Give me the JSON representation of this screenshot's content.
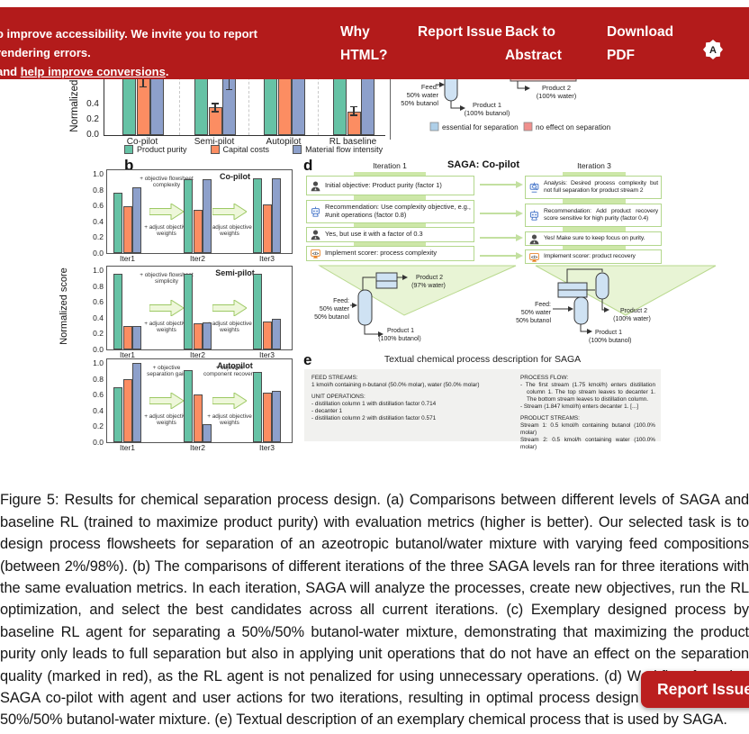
{
  "banner": {
    "color": "#b31b1b",
    "notice_line1": "o improve accessibility. We invite you to report rendering errors.",
    "notice_line2_prefix": "and ",
    "notice_line2_link": "help improve conversions",
    "notice_line2_suffix": ".",
    "nav": [
      {
        "label": "Why HTML?"
      },
      {
        "label": "Report Issue"
      },
      {
        "label": "Back to Abstract"
      },
      {
        "label": "Download PDF"
      }
    ],
    "logo_letter": "A"
  },
  "report_issue_button": {
    "label": "Report Issue",
    "color": "#bb1f1f"
  },
  "colors": {
    "green": "#66c2a5",
    "orange": "#fc8d62",
    "blue": "#8da0cb",
    "arrow_fill": "#eef7da",
    "arrow_stroke": "#9dc964",
    "box_border": "#b3d78c",
    "triangle_fill": "#e8f4d5",
    "equipment_fill": "#cfe2f3",
    "legend_blue": "#aecfe8",
    "legend_red": "#f0908d"
  },
  "chart_data": [
    {
      "id": "panel-a",
      "type": "bar",
      "categories": [
        "Co-pilot",
        "Semi-pilot",
        "Autopilot",
        "RL baseline"
      ],
      "series": [
        {
          "name": "Product purity",
          "color": "#66c2a5",
          "values": [
            0.99,
            0.99,
            0.99,
            0.99
          ]
        },
        {
          "name": "Capital costs",
          "color": "#fc8d62",
          "values": [
            0.8,
            0.36,
            0.95,
            0.31
          ],
          "errors": [
            [
              0.62,
              0.88
            ],
            [
              0.3,
              0.42
            ],
            null,
            [
              0.25,
              0.38
            ]
          ]
        },
        {
          "name": "Material flow intensity",
          "color": "#8da0cb",
          "values": [
            0.95,
            0.82,
            0.97,
            0.93
          ],
          "errors": [
            null,
            [
              0.59,
              0.95
            ],
            null,
            null
          ]
        }
      ],
      "ylabel": "Normalized score",
      "ylim": [
        0,
        1.05
      ],
      "yticks_visible": [
        "0.0",
        "0.2",
        "0.4"
      ],
      "grid": "dashed group separators",
      "note": "Upper part of panel (a) is occluded by the sticky banner; values above ~0.73 are estimates read at the banner edge."
    },
    {
      "id": "b-copilot",
      "type": "bar",
      "title": "Co-pilot",
      "categories": [
        "Iter1",
        "Iter2",
        "Iter3"
      ],
      "series": [
        {
          "name": "Product purity",
          "color": "#66c2a5",
          "values": [
            0.76,
            0.93,
            0.94
          ]
        },
        {
          "name": "Capital costs",
          "color": "#fc8d62",
          "values": [
            0.59,
            0.55,
            0.61
          ]
        },
        {
          "name": "Material flow intensity",
          "color": "#8da0cb",
          "values": [
            0.83,
            0.93,
            0.94
          ]
        }
      ],
      "arrow1_top": "+ objective flowsheet complexity",
      "arrow1_bottom": "+ adjust objective weights",
      "arrow2_top": "",
      "arrow2_bottom": "+ adjust objective weights",
      "ylim": [
        0,
        1.0
      ]
    },
    {
      "id": "b-semipilot",
      "type": "bar",
      "title": "Semi-pilot",
      "categories": [
        "Iter1",
        "Iter2",
        "Iter3"
      ],
      "series": [
        {
          "name": "Product purity",
          "color": "#66c2a5",
          "values": [
            0.96,
            0.95,
            0.96
          ]
        },
        {
          "name": "Capital costs",
          "color": "#fc8d62",
          "values": [
            0.29,
            0.33,
            0.35
          ]
        },
        {
          "name": "Material flow intensity",
          "color": "#8da0cb",
          "values": [
            0.29,
            0.34,
            0.39
          ]
        }
      ],
      "arrow1_top": "+ objective flowsheet simplicity",
      "arrow1_bottom": "+ adjust objective weights",
      "arrow2_top": "",
      "arrow2_bottom": "+ adjust objective weights",
      "ylim": [
        0,
        1.0
      ]
    },
    {
      "id": "b-autopilot",
      "type": "bar",
      "title": "Autopilot",
      "categories": [
        "Iter1",
        "Iter2",
        "Iter3"
      ],
      "series": [
        {
          "name": "Product purity",
          "color": "#66c2a5",
          "values": [
            0.69,
            0.91,
            0.89
          ]
        },
        {
          "name": "Capital costs",
          "color": "#fc8d62",
          "values": [
            0.79,
            0.6,
            0.62
          ]
        },
        {
          "name": "Material flow intensity",
          "color": "#8da0cb",
          "values": [
            1.0,
            0.23,
            0.65
          ]
        }
      ],
      "arrow1_top": "+ objective separation gain",
      "arrow1_bottom": "+ adjust objective weights",
      "arrow2_top": "+ objective component recovery",
      "arrow2_bottom": "+ adjust objective weights",
      "ylim": [
        0,
        1.0
      ]
    }
  ],
  "figure": {
    "panel_b_label": "b",
    "panel_b_ylabel": "Normalized score",
    "panel_b_yticks": "1.0,0.8,0.6,0.4,0.2,0.0"
  },
  "panel_c": {
    "feed": [
      "Feed:",
      "50% water",
      "50% butanol"
    ],
    "product1": [
      "Product 1",
      "(100% butanol)"
    ],
    "product2": [
      "Product 2",
      "(100% water)"
    ],
    "legend": [
      {
        "label": "essential for separation",
        "color": "#aecfe8"
      },
      {
        "label": "no effect on separation",
        "color": "#f0908d"
      }
    ]
  },
  "panel_d": {
    "label": "d",
    "title": "SAGA: Co-pilot",
    "col1_header": "Iteration 1",
    "col2_header": "Iteration 3",
    "col1_boxes": [
      {
        "icon": "user",
        "text": "Initial objective: Product purity (factor 1)"
      },
      {
        "icon": "robot",
        "text": "Recommendation: Use complexity objective, e.g., #unit operations (factor 0.8)"
      },
      {
        "icon": "user",
        "text": "Yes, but use it with a factor of 0.3"
      },
      {
        "icon": "code",
        "text": "Implement scorer: process complexity"
      }
    ],
    "col2_boxes": [
      {
        "icon": "robot-search",
        "text": "Analysis: Desired process complexity but not full separation for product stream 2"
      },
      {
        "icon": "robot",
        "text": "Recommendation: Add product recovery score sensitive for high purity (factor 0.4)"
      },
      {
        "icon": "user",
        "text": "Yes! Make sure to keep focus on purity."
      },
      {
        "icon": "code",
        "text": "Implement scorer: product recovery"
      }
    ],
    "flowsheet1": {
      "feed": [
        "Feed:",
        "50% water",
        "50% butanol"
      ],
      "product1": [
        "Product 1",
        "(100% butanol)"
      ],
      "product2": [
        "Product 2",
        "(97% water)"
      ]
    },
    "flowsheet2": {
      "feed": [
        "Feed:",
        "50% water",
        "50% butanol"
      ],
      "product1": [
        "Product 1",
        "(100% butanol)"
      ],
      "product2": [
        "Product 2",
        "(100% water)"
      ]
    }
  },
  "panel_e": {
    "label": "e",
    "title": "Textual chemical process description for SAGA",
    "left_lines": [
      "FEED STREAMS:",
      "1 kmol/h containing n-butanol (50.0% molar), water (50.0% molar)",
      "",
      "UNIT OPERATIONS:",
      "- distillation column 1 with distillation factor 0.714",
      "- decanter 1",
      "- distillation column 2 with distillation factor 0.571"
    ],
    "right_lines": [
      "PROCESS FLOW:",
      "- The first stream (1.75 kmol/h) enters distillation column 1. The top stream leaves to decanter 1. The bottom stream leaves to distillation column.",
      "- Stream (1.847 kmol/h) enters decanter 1. [...]",
      "",
      "PRODUCT STREAMS:",
      "Stream 1: 0.5 kmol/h containing butanol (100.0% molar)",
      "Stream 2: 0.5 kmol/h containing water (100.0% molar)"
    ]
  },
  "caption": "Figure 5: Results for chemical separation process design. (a) Comparisons between different levels of SAGA and baseline RL (trained to maximize product purity) with evaluation metrics (higher is better). Our selected task is to design process flowsheets for separation of an azeotropic butanol/water mixture with varying feed compositions (between 2%/98%). (b) The comparisons of different iterations of the three SAGA levels ran for three iterations with the same evaluation metrics. In each iteration, SAGA will analyze the processes, create new objectives, run the RL optimization, and select the best candidates across all current iterations. (c) Exemplary designed process by baseline RL agent for separating a 50%/50% butanol-water mixture, demonstrating that maximizing the product purity only leads to full separation but also in applying unit operations that do not have an effect on the separation quality (marked in red), as the RL agent is not penalized for using unnecessary operations. (d) Workflow for using SAGA co-pilot with agent and user actions for two iterations, resulting in optimal process design for separating a 50%/50% butanol-water mixture. (e) Textual description of an exemplary chemical process that is used by SAGA."
}
